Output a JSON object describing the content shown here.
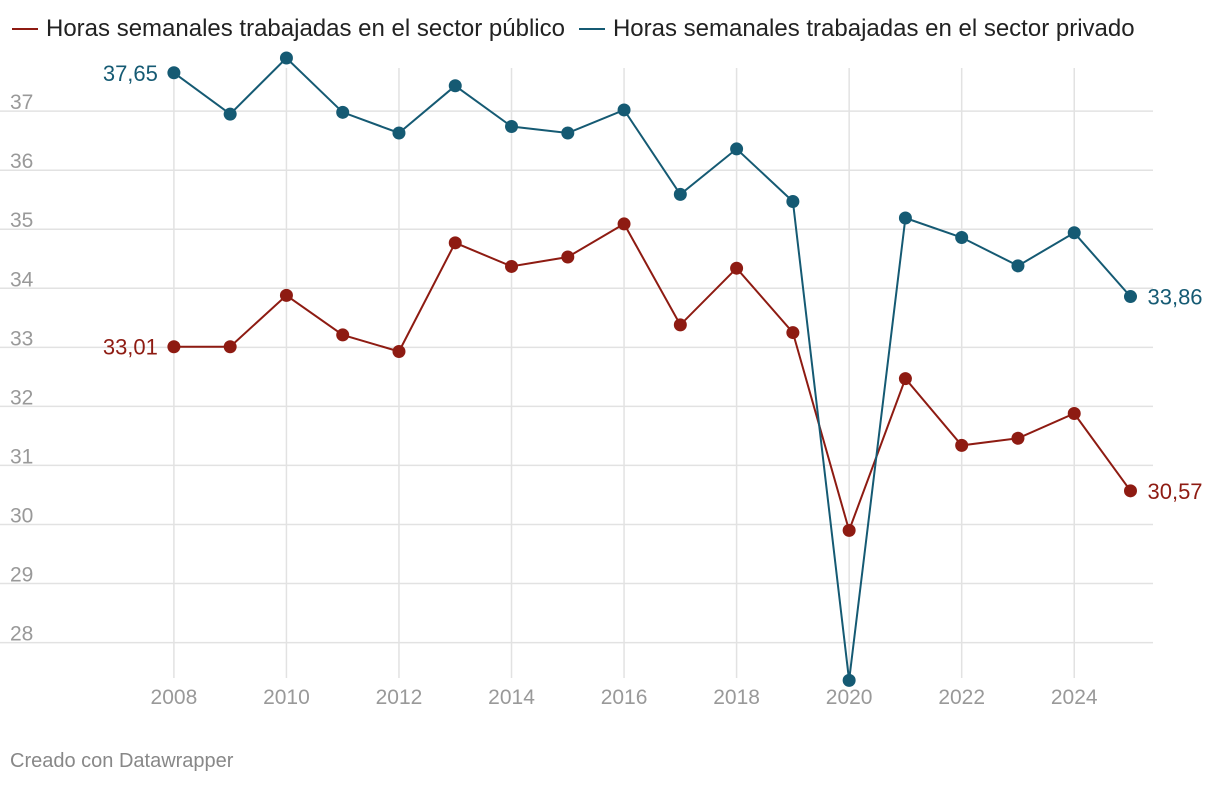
{
  "chart_data": {
    "type": "line",
    "title": "",
    "xlabel": "",
    "ylabel": "",
    "x": [
      2008,
      2009,
      2010,
      2011,
      2012,
      2013,
      2014,
      2015,
      2016,
      2017,
      2018,
      2019,
      2020,
      2021,
      2022,
      2023,
      2024,
      2025
    ],
    "x_ticks": [
      2008,
      2010,
      2012,
      2014,
      2016,
      2018,
      2020,
      2022,
      2024
    ],
    "y_ticks": [
      28,
      29,
      30,
      31,
      32,
      33,
      34,
      35,
      36,
      37
    ],
    "ylim": [
      27.4,
      37.9
    ],
    "xlim": [
      2006.9,
      2025.4
    ],
    "grid": true,
    "legend_position": "top-left",
    "series": [
      {
        "name": "Horas semanales trabajadas en el sector público",
        "color": "#8e1b12",
        "values": [
          33.01,
          33.01,
          33.88,
          33.21,
          32.93,
          34.77,
          34.37,
          34.53,
          35.09,
          33.38,
          34.34,
          33.25,
          29.9,
          32.47,
          31.34,
          31.46,
          31.88,
          30.57
        ],
        "start_label": "33,01",
        "end_label": "30,57"
      },
      {
        "name": "Horas semanales trabajadas en el sector privado",
        "color": "#155a73",
        "values": [
          37.65,
          36.95,
          37.9,
          36.98,
          36.63,
          37.43,
          36.74,
          36.63,
          37.02,
          35.59,
          36.36,
          35.47,
          27.36,
          35.19,
          34.86,
          34.38,
          34.94,
          33.86
        ],
        "start_label": "37,65",
        "end_label": "33,86"
      }
    ]
  },
  "footer": {
    "credit": "Creado con Datawrapper"
  }
}
